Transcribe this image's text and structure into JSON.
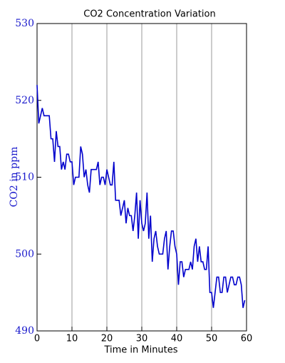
{
  "chart_data": {
    "type": "line",
    "title": "CO2 Concentration Variation",
    "x_label": "Time in Minutes",
    "y_label": "CO2 in ppm",
    "x": [
      0,
      0.5,
      1,
      1.5,
      2,
      2.5,
      3,
      3.5,
      4,
      4.5,
      5,
      5.5,
      6,
      6.5,
      7,
      7.5,
      8,
      8.5,
      9,
      9.5,
      10,
      10.5,
      11,
      11.5,
      12,
      12.5,
      13,
      13.5,
      14,
      14.5,
      15,
      15.5,
      16,
      16.5,
      17,
      17.5,
      18,
      18.5,
      19,
      19.5,
      20,
      20.5,
      21,
      21.5,
      22,
      22.5,
      23,
      23.5,
      24,
      24.5,
      25,
      25.5,
      26,
      26.5,
      27,
      27.5,
      28,
      28.5,
      29,
      29.5,
      30,
      30.5,
      31,
      31.5,
      32,
      32.5,
      33,
      33.5,
      34,
      34.5,
      35,
      35.5,
      36,
      36.5,
      37,
      37.5,
      38,
      38.5,
      39,
      39.5,
      40,
      40.5,
      41,
      41.5,
      42,
      42.5,
      43,
      43.5,
      44,
      44.5,
      45,
      45.5,
      46,
      46.5,
      47,
      47.5,
      48,
      48.5,
      49,
      49.5,
      50,
      50.5,
      51,
      51.5,
      52,
      52.5,
      53,
      53.5,
      54,
      54.5,
      55,
      55.5,
      56,
      56.5,
      57,
      57.5,
      58,
      58.5,
      59,
      59.5
    ],
    "series": [
      {
        "name": "CO2",
        "color": "#0000cc",
        "values": [
          522,
          517,
          518,
          519,
          518,
          518,
          518,
          518,
          515,
          515,
          512,
          516,
          514,
          514,
          511,
          512,
          511,
          513,
          513,
          512,
          512,
          509,
          510,
          510,
          510,
          514,
          513,
          510,
          511,
          509,
          508,
          511,
          511,
          511,
          511,
          512,
          509,
          510,
          510,
          509,
          511,
          510,
          509,
          509,
          512,
          507,
          507,
          507,
          505,
          506,
          507,
          504,
          506,
          505,
          505,
          503,
          505,
          508,
          502,
          507,
          504,
          503,
          504,
          508,
          502,
          505,
          499,
          502,
          503,
          501,
          500,
          500,
          500,
          502,
          503,
          498,
          501,
          503,
          503,
          501,
          500,
          496,
          499,
          499,
          497,
          498,
          498,
          498,
          499,
          498,
          501,
          502,
          499,
          501,
          499,
          499,
          498,
          498,
          501,
          495,
          495,
          493,
          495,
          497,
          497,
          495,
          495,
          497,
          497,
          495,
          496,
          497,
          497,
          496,
          496,
          497,
          497,
          496,
          493,
          494
        ]
      }
    ],
    "xlim": [
      0,
      60
    ],
    "ylim": [
      490,
      530
    ],
    "xticks": [
      0,
      10,
      20,
      30,
      40,
      50,
      60
    ],
    "yticks": [
      490,
      500,
      510,
      520,
      530
    ],
    "grid": true
  }
}
